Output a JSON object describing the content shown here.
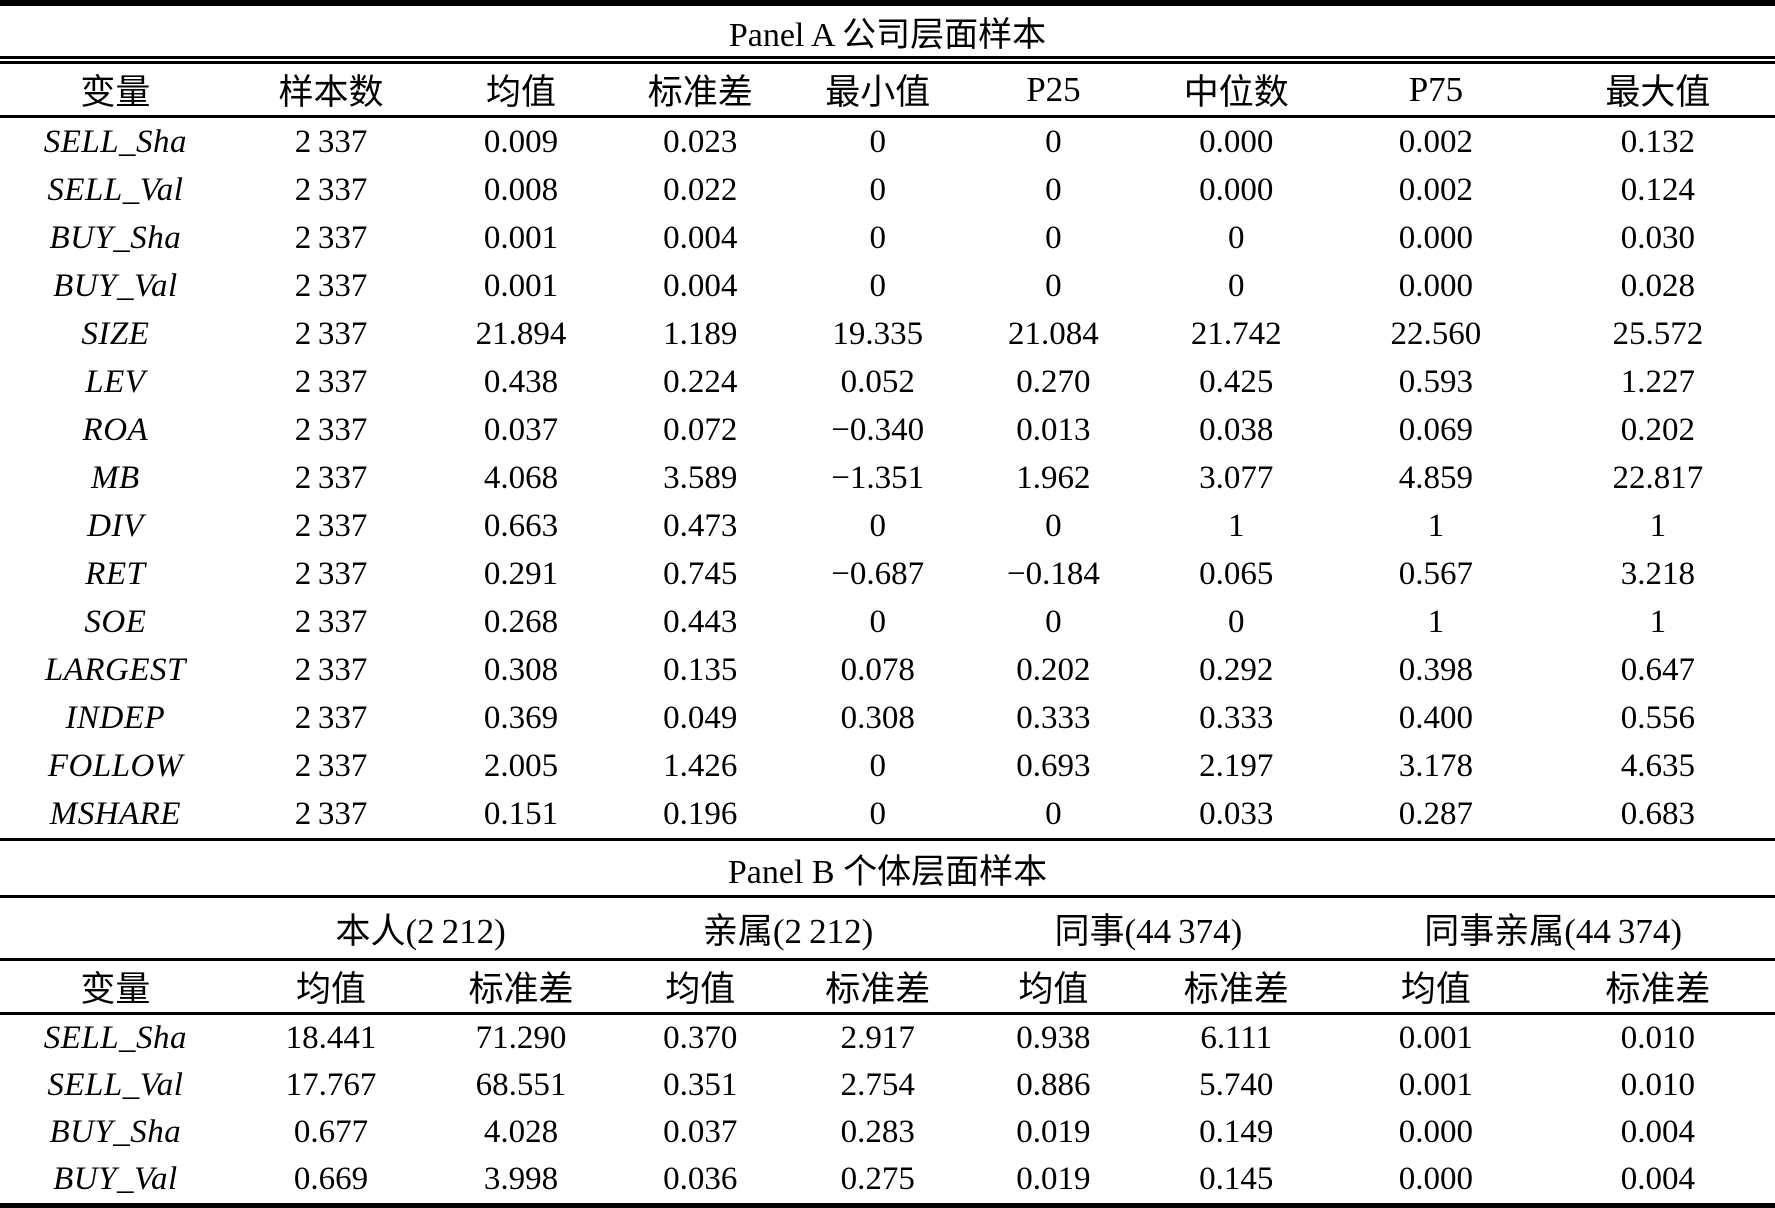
{
  "table": {
    "panel_a": {
      "title": "Panel A 公司层面样本",
      "columns": [
        "变量",
        "样本数",
        "均值",
        "标准差",
        "最小值",
        "P25",
        "中位数",
        "P75",
        "最大值"
      ],
      "rows": [
        {
          "name": "SELL_Sha",
          "values": [
            "2 337",
            "0.009",
            "0.023",
            "0",
            "0",
            "0.000",
            "0.002",
            "0.132"
          ]
        },
        {
          "name": "SELL_Val",
          "values": [
            "2 337",
            "0.008",
            "0.022",
            "0",
            "0",
            "0.000",
            "0.002",
            "0.124"
          ]
        },
        {
          "name": "BUY_Sha",
          "values": [
            "2 337",
            "0.001",
            "0.004",
            "0",
            "0",
            "0",
            "0.000",
            "0.030"
          ]
        },
        {
          "name": "BUY_Val",
          "values": [
            "2 337",
            "0.001",
            "0.004",
            "0",
            "0",
            "0",
            "0.000",
            "0.028"
          ]
        },
        {
          "name": "SIZE",
          "values": [
            "2 337",
            "21.894",
            "1.189",
            "19.335",
            "21.084",
            "21.742",
            "22.560",
            "25.572"
          ]
        },
        {
          "name": "LEV",
          "values": [
            "2 337",
            "0.438",
            "0.224",
            "0.052",
            "0.270",
            "0.425",
            "0.593",
            "1.227"
          ]
        },
        {
          "name": "ROA",
          "values": [
            "2 337",
            "0.037",
            "0.072",
            "−0.340",
            "0.013",
            "0.038",
            "0.069",
            "0.202"
          ]
        },
        {
          "name": "MB",
          "values": [
            "2 337",
            "4.068",
            "3.589",
            "−1.351",
            "1.962",
            "3.077",
            "4.859",
            "22.817"
          ]
        },
        {
          "name": "DIV",
          "values": [
            "2 337",
            "0.663",
            "0.473",
            "0",
            "0",
            "1",
            "1",
            "1"
          ]
        },
        {
          "name": "RET",
          "values": [
            "2 337",
            "0.291",
            "0.745",
            "−0.687",
            "−0.184",
            "0.065",
            "0.567",
            "3.218"
          ]
        },
        {
          "name": "SOE",
          "values": [
            "2 337",
            "0.268",
            "0.443",
            "0",
            "0",
            "0",
            "1",
            "1"
          ]
        },
        {
          "name": "LARGEST",
          "values": [
            "2 337",
            "0.308",
            "0.135",
            "0.078",
            "0.202",
            "0.292",
            "0.398",
            "0.647"
          ]
        },
        {
          "name": "INDEP",
          "values": [
            "2 337",
            "0.369",
            "0.049",
            "0.308",
            "0.333",
            "0.333",
            "0.400",
            "0.556"
          ]
        },
        {
          "name": "FOLLOW",
          "values": [
            "2 337",
            "2.005",
            "1.426",
            "0",
            "0.693",
            "2.197",
            "3.178",
            "4.635"
          ]
        },
        {
          "name": "MSHARE",
          "values": [
            "2 337",
            "0.151",
            "0.196",
            "0",
            "0",
            "0.033",
            "0.287",
            "0.683"
          ]
        }
      ]
    },
    "panel_b": {
      "title": "Panel B 个体层面样本",
      "groups": [
        "本人(2 212)",
        "亲属(2 212)",
        "同事(44 374)",
        "同事亲属(44 374)"
      ],
      "columns": [
        "变量",
        "均值",
        "标准差",
        "均值",
        "标准差",
        "均值",
        "标准差",
        "均值",
        "标准差"
      ],
      "rows": [
        {
          "name": "SELL_Sha",
          "values": [
            "18.441",
            "71.290",
            "0.370",
            "2.917",
            "0.938",
            "6.111",
            "0.001",
            "0.010"
          ]
        },
        {
          "name": "SELL_Val",
          "values": [
            "17.767",
            "68.551",
            "0.351",
            "2.754",
            "0.886",
            "5.740",
            "0.001",
            "0.010"
          ]
        },
        {
          "name": "BUY_Sha",
          "values": [
            "0.677",
            "4.028",
            "0.037",
            "0.283",
            "0.019",
            "0.149",
            "0.000",
            "0.004"
          ]
        },
        {
          "name": "BUY_Val",
          "values": [
            "0.669",
            "3.998",
            "0.036",
            "0.275",
            "0.019",
            "0.145",
            "0.000",
            "0.004"
          ]
        }
      ]
    }
  }
}
